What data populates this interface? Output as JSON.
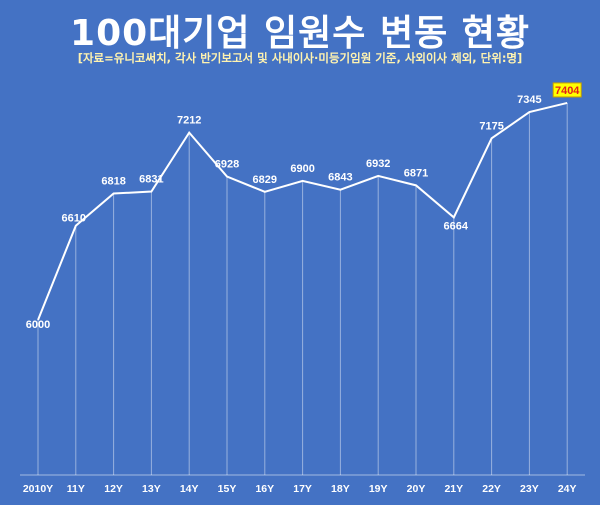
{
  "title": "100대기업 임원수 변동 현황",
  "subtitle": "[자료=유니코써치, 각사 반기보고서 및 사내이사·미등기임원 기준, 사외이사 제외, 단위:명]",
  "colors": {
    "background": "#4472c4",
    "line": "#ffffff",
    "highlight_bg": "#ffff00",
    "highlight_text": "#e0201a"
  },
  "chart_data": {
    "type": "line",
    "title": "100대기업 임원수 변동 현황",
    "categories": [
      "2010Y",
      "11Y",
      "12Y",
      "13Y",
      "14Y",
      "15Y",
      "16Y",
      "17Y",
      "18Y",
      "19Y",
      "20Y",
      "21Y",
      "22Y",
      "23Y",
      "24Y"
    ],
    "values": [
      6000,
      6610,
      6818,
      6831,
      7212,
      6928,
      6829,
      6900,
      6843,
      6932,
      6871,
      6664,
      7175,
      7345,
      7404
    ],
    "highlight_index": 14,
    "grid": false,
    "unit": "명"
  }
}
